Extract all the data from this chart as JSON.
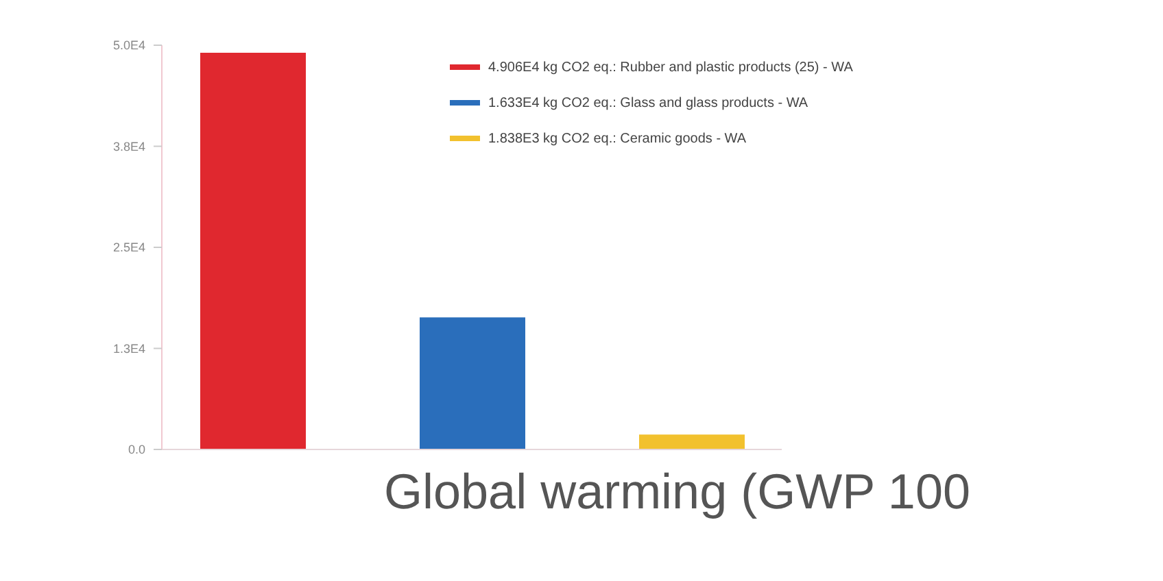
{
  "chart_data": {
    "type": "bar",
    "xlabel": "Global warming (GWP 100",
    "categories": [
      null
    ],
    "series": [
      {
        "name": "4.906E4 kg CO2 eq.: Rubber and plastic products (25) - WA",
        "color": "#e0282f",
        "values": [
          49060
        ]
      },
      {
        "name": "1.633E4 kg CO2 eq.: Glass and glass products - WA",
        "color": "#2a6ebb",
        "values": [
          16330
        ]
      },
      {
        "name": "1.838E3 kg CO2 eq.: Ceramic goods - WA",
        "color": "#f2c12e",
        "values": [
          1838
        ]
      }
    ],
    "ylim": [
      0,
      50000
    ],
    "yticks": [
      {
        "value": 0,
        "label": "0.0"
      },
      {
        "value": 12500,
        "label": "1.3E4"
      },
      {
        "value": 25000,
        "label": "2.5E4"
      },
      {
        "value": 37500,
        "label": "3.8E4"
      },
      {
        "value": 50000,
        "label": "5.0E4"
      }
    ],
    "legend": "top right"
  }
}
